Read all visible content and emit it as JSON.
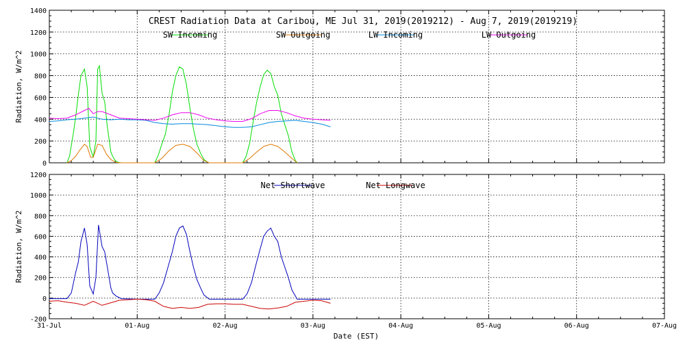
{
  "chart_data": [
    {
      "type": "line",
      "title": "CREST Radiation Data at Caribou, ME   Jul 31, 2019(2019212) - Aug  7, 2019(2019219)",
      "ylabel": "Radiation, W/m^2",
      "xlim": [
        0,
        7
      ],
      "ylim": [
        0,
        1400
      ],
      "yticks": [
        0,
        200,
        400,
        600,
        800,
        1000,
        1200,
        1400
      ],
      "grid": true,
      "legend": "top",
      "series": [
        {
          "name": "SW Incoming",
          "color": "#00dd00",
          "x": [
            0.2,
            0.23,
            0.27,
            0.3,
            0.33,
            0.36,
            0.4,
            0.43,
            0.46,
            0.5,
            0.53,
            0.55,
            0.57,
            0.6,
            0.63,
            0.66,
            0.7,
            0.72,
            0.75,
            0.78,
            0.82,
            1.2,
            1.24,
            1.28,
            1.32,
            1.36,
            1.4,
            1.44,
            1.48,
            1.52,
            1.56,
            1.6,
            1.64,
            1.68,
            1.72,
            1.76,
            1.8,
            1.82,
            2.2,
            2.24,
            2.28,
            2.32,
            2.36,
            2.4,
            2.44,
            2.48,
            2.52,
            2.56,
            2.6,
            2.64,
            2.68,
            2.72,
            2.76,
            2.8,
            2.82
          ],
          "y": [
            0,
            60,
            250,
            420,
            620,
            800,
            860,
            700,
            150,
            50,
            200,
            860,
            890,
            640,
            560,
            330,
            100,
            60,
            20,
            5,
            0,
            0,
            70,
            170,
            260,
            430,
            650,
            800,
            880,
            860,
            720,
            500,
            310,
            170,
            90,
            30,
            5,
            0,
            0,
            60,
            180,
            380,
            560,
            700,
            810,
            850,
            820,
            700,
            620,
            450,
            350,
            250,
            100,
            20,
            0
          ]
        },
        {
          "name": "SW Outgoing",
          "color": "#dd7700",
          "x": [
            0.2,
            0.25,
            0.3,
            0.35,
            0.4,
            0.43,
            0.47,
            0.5,
            0.55,
            0.6,
            0.65,
            0.7,
            0.75,
            0.8,
            1.2,
            1.28,
            1.36,
            1.44,
            1.52,
            1.6,
            1.68,
            1.76,
            1.82,
            2.2,
            2.28,
            2.36,
            2.44,
            2.52,
            2.6,
            2.68,
            2.76,
            2.82
          ],
          "y": [
            0,
            20,
            60,
            120,
            170,
            150,
            50,
            50,
            170,
            160,
            80,
            30,
            5,
            0,
            0,
            40,
            110,
            160,
            170,
            150,
            90,
            20,
            0,
            0,
            40,
            100,
            150,
            170,
            150,
            100,
            40,
            0
          ]
        },
        {
          "name": "LW Incoming",
          "color": "#0088dd",
          "x": [
            0,
            0.1,
            0.2,
            0.3,
            0.4,
            0.5,
            0.6,
            0.7,
            0.8,
            0.9,
            1.0,
            1.1,
            1.2,
            1.3,
            1.4,
            1.5,
            1.6,
            1.7,
            1.8,
            1.9,
            2.0,
            2.1,
            2.2,
            2.3,
            2.4,
            2.5,
            2.6,
            2.7,
            2.8,
            2.9,
            3.0,
            3.1,
            3.2
          ],
          "y": [
            380,
            385,
            395,
            400,
            410,
            420,
            400,
            395,
            400,
            395,
            395,
            390,
            370,
            360,
            355,
            360,
            360,
            355,
            350,
            340,
            330,
            325,
            325,
            330,
            350,
            370,
            380,
            385,
            390,
            380,
            370,
            355,
            330
          ]
        },
        {
          "name": "LW Outgoing",
          "color": "#ee00ee",
          "x": [
            0,
            0.1,
            0.2,
            0.3,
            0.35,
            0.4,
            0.45,
            0.5,
            0.55,
            0.6,
            0.7,
            0.8,
            0.9,
            1.0,
            1.1,
            1.2,
            1.3,
            1.4,
            1.5,
            1.6,
            1.7,
            1.8,
            1.9,
            2.0,
            2.1,
            2.2,
            2.3,
            2.4,
            2.5,
            2.6,
            2.7,
            2.8,
            2.9,
            3.0,
            3.1,
            3.2
          ],
          "y": [
            410,
            405,
            410,
            440,
            460,
            480,
            500,
            450,
            470,
            470,
            440,
            410,
            405,
            400,
            395,
            390,
            410,
            440,
            460,
            460,
            440,
            410,
            395,
            385,
            380,
            380,
            405,
            450,
            480,
            480,
            460,
            430,
            410,
            400,
            395,
            390
          ]
        }
      ]
    },
    {
      "type": "line",
      "xlabel": "Date (EST)",
      "ylabel": "Radiation, W/m^2",
      "xlim": [
        0,
        7
      ],
      "ylim": [
        -200,
        1200
      ],
      "yticks": [
        -200,
        0,
        200,
        400,
        600,
        800,
        1000,
        1200
      ],
      "categories": [
        "31-Jul",
        "01-Aug",
        "02-Aug",
        "03-Aug",
        "04-Aug",
        "05-Aug",
        "06-Aug",
        "07-Aug"
      ],
      "grid": true,
      "legend": "top",
      "series": [
        {
          "name": "Net Shortwave",
          "color": "#0000bb",
          "x": [
            0,
            0.2,
            0.25,
            0.3,
            0.33,
            0.36,
            0.4,
            0.43,
            0.46,
            0.5,
            0.53,
            0.56,
            0.6,
            0.63,
            0.66,
            0.7,
            0.72,
            0.76,
            0.82,
            1.0,
            1.2,
            1.25,
            1.3,
            1.35,
            1.4,
            1.44,
            1.48,
            1.52,
            1.56,
            1.6,
            1.64,
            1.68,
            1.72,
            1.76,
            1.82,
            2.0,
            2.2,
            2.25,
            2.3,
            2.35,
            2.4,
            2.44,
            2.48,
            2.52,
            2.56,
            2.6,
            2.64,
            2.68,
            2.72,
            2.76,
            2.82,
            3.0,
            3.2
          ],
          "y": [
            -5,
            -5,
            50,
            250,
            350,
            550,
            680,
            520,
            120,
            40,
            200,
            710,
            500,
            450,
            300,
            100,
            50,
            20,
            -5,
            -10,
            -10,
            50,
            150,
            300,
            450,
            600,
            680,
            700,
            620,
            450,
            300,
            180,
            100,
            30,
            -10,
            -10,
            -10,
            40,
            150,
            320,
            480,
            600,
            650,
            680,
            600,
            550,
            400,
            300,
            200,
            80,
            -10,
            -10,
            -10
          ]
        },
        {
          "name": "Net Longwave",
          "color": "#cc0000",
          "x": [
            0,
            0.1,
            0.2,
            0.3,
            0.4,
            0.5,
            0.6,
            0.7,
            0.8,
            0.9,
            1.0,
            1.1,
            1.2,
            1.3,
            1.4,
            1.5,
            1.6,
            1.7,
            1.8,
            1.9,
            2.0,
            2.1,
            2.2,
            2.3,
            2.4,
            2.5,
            2.6,
            2.7,
            2.8,
            2.9,
            3.0,
            3.1,
            3.2
          ],
          "y": [
            -30,
            -25,
            -40,
            -50,
            -70,
            -30,
            -70,
            -45,
            -20,
            -15,
            -10,
            -15,
            -30,
            -80,
            -100,
            -90,
            -100,
            -90,
            -60,
            -55,
            -55,
            -60,
            -60,
            -80,
            -100,
            -105,
            -95,
            -80,
            -40,
            -30,
            -20,
            -25,
            -50
          ]
        }
      ]
    }
  ]
}
